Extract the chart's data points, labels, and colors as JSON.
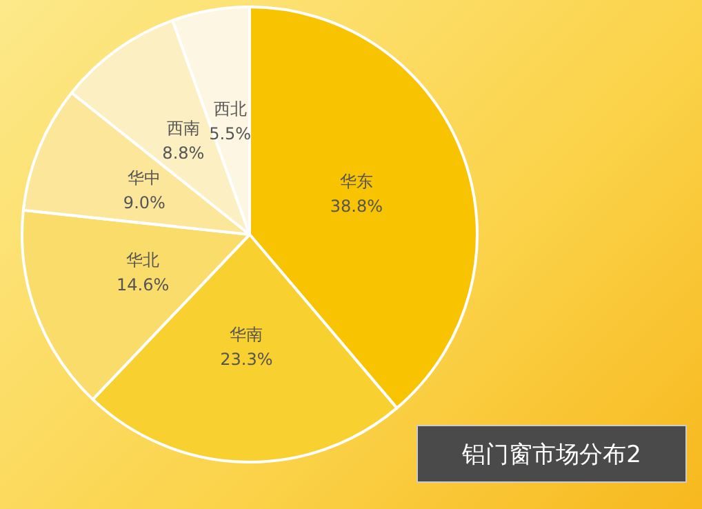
{
  "chart_data": {
    "type": "pie",
    "title": "铝门窗市场分布2",
    "categories": [
      "华东",
      "华南",
      "华北",
      "华中",
      "西南",
      "西北"
    ],
    "values": [
      38.8,
      23.3,
      14.6,
      9.0,
      8.8,
      5.5
    ],
    "value_labels": [
      "38.8%",
      "23.3%",
      "14.6%",
      "9.0%",
      "8.8%",
      "5.5%"
    ],
    "colors": [
      "#f8c300",
      "#f8d030",
      "#f9dc6a",
      "#fbe699",
      "#fcefc2",
      "#fdf6e2"
    ],
    "legend": false
  }
}
